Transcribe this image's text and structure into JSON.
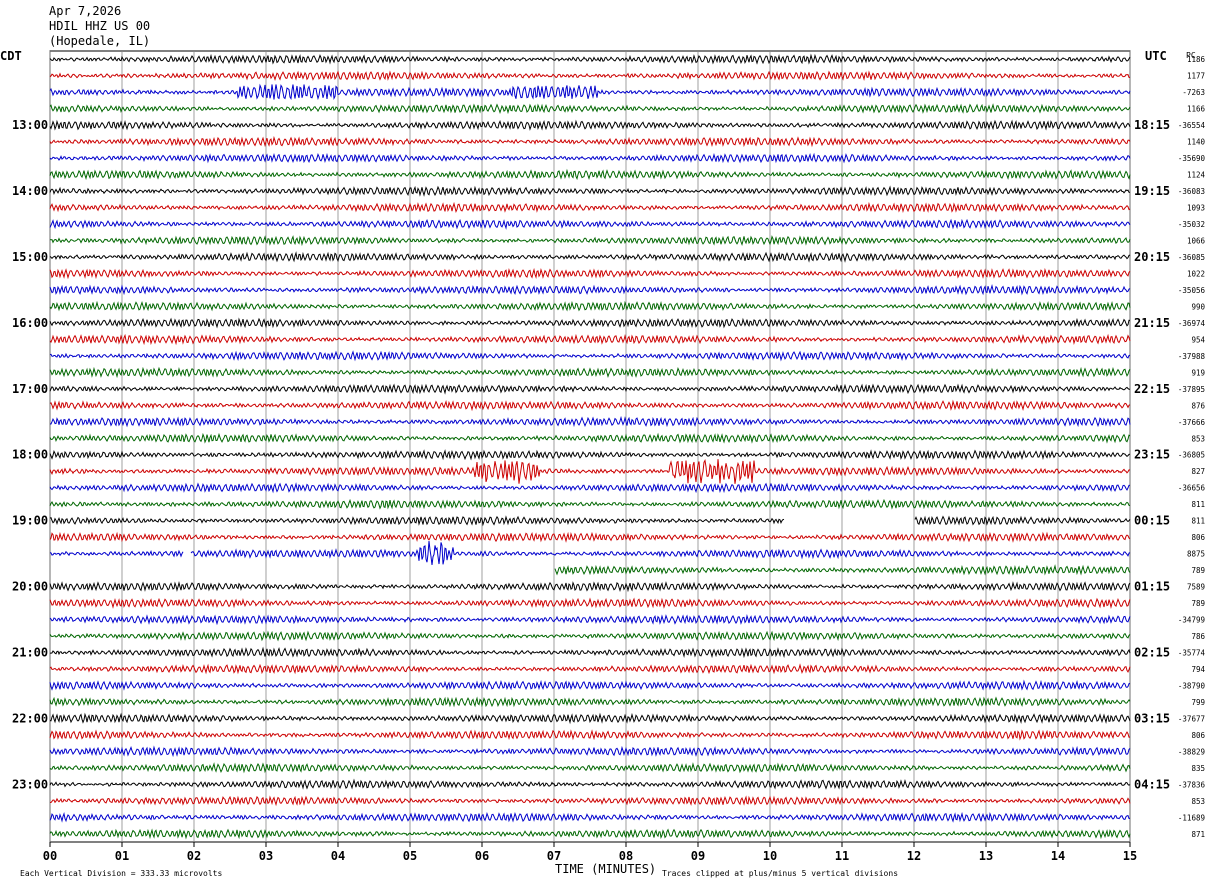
{
  "header": {
    "date": "Apr 7,2026",
    "station": "HDIL HHZ US 00",
    "location": "(Hopedale, IL)"
  },
  "chart_data": {
    "type": "line",
    "title": "",
    "left_axis_label": "CDT",
    "right_axis_label": "UTC",
    "corner_tag": "PC",
    "xlabel": "TIME (MINUTES)",
    "xlim": [
      0,
      15
    ],
    "x_ticks": [
      "00",
      "01",
      "02",
      "03",
      "04",
      "05",
      "06",
      "07",
      "08",
      "09",
      "10",
      "11",
      "12",
      "13",
      "14",
      "15"
    ],
    "left_hour_labels": [
      "13:00",
      "14:00",
      "15:00",
      "16:00",
      "17:00",
      "18:00",
      "19:00",
      "20:00",
      "21:00",
      "22:00",
      "23:00"
    ],
    "right_hour_labels": [
      "18:15",
      "19:15",
      "20:15",
      "21:15",
      "22:15",
      "23:15",
      "00:15",
      "01:15",
      "02:15",
      "03:15",
      "04:15"
    ],
    "first_labeled_row": 4,
    "rows_per_hour": 4,
    "trace_colors": [
      "#000000",
      "#cc0000",
      "#0000cc",
      "#006600"
    ],
    "trace_count": 48,
    "right_row_values": [
      "1186",
      "1177",
      "-7263",
      "1166",
      "-36554",
      "1140",
      "-35690",
      "1124",
      "-36083",
      "1093",
      "-35032",
      "1066",
      "-36085",
      "1022",
      "-35056",
      "990",
      "-36974",
      "954",
      "-37988",
      "919",
      "-37895",
      "876",
      "-37666",
      "853",
      "-36805",
      "827",
      "-36656",
      "811",
      "811",
      "806",
      "8875",
      "789",
      "7589",
      "789",
      "-34799",
      "786",
      "-35774",
      "794",
      "-38790",
      "799",
      "-37677",
      "806",
      "-38829",
      "835",
      "-37836",
      "853",
      "-11689",
      "871"
    ],
    "events": [
      {
        "row": 25,
        "start_min": 5.9,
        "end_min": 6.8,
        "amp": 3
      },
      {
        "row": 25,
        "start_min": 8.6,
        "end_min": 9.8,
        "amp": 3
      },
      {
        "row": 30,
        "start_min": 5.1,
        "end_min": 5.6,
        "amp": 3.5
      },
      {
        "row": 2,
        "start_min": 2.6,
        "end_min": 4.0,
        "amp": 1.3
      },
      {
        "row": 2,
        "start_min": 6.4,
        "end_min": 7.6,
        "amp": 1.2
      }
    ],
    "gaps": [
      {
        "row": 28,
        "start_min": 10.2,
        "end_min": 12.0
      },
      {
        "row": 31,
        "start_min": 0.0,
        "end_min": 7.0
      },
      {
        "row": 30,
        "start_min": 1.85,
        "end_min": 1.95
      }
    ],
    "footer_left": "Each Vertical Division =  333.33 microvolts",
    "footer_right": "Traces clipped at plus/minus 5 vertical divisions"
  }
}
